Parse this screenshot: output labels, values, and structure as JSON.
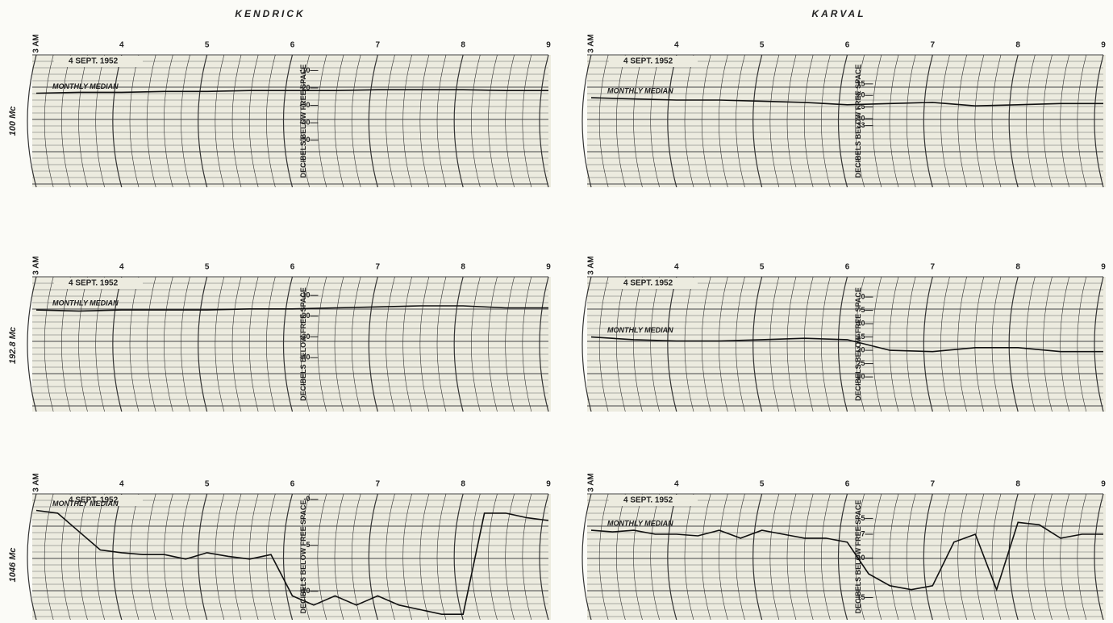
{
  "columns": [
    "KENDRICK",
    "KARVAL"
  ],
  "rows": [
    "100 Mc",
    "192.8 Mc",
    "1046 Mc"
  ],
  "panels": [
    {
      "date": "4 SEPT. 1952",
      "median_label": "MONTHLY MEDIAN",
      "axis_label": "DECIBELS BELOW FREE SPACE",
      "hours": [
        {
          "value": 3,
          "label": "3 AM"
        },
        4,
        5,
        6,
        7,
        8,
        9
      ],
      "ylim": [
        -1,
        -77
      ],
      "scale": [
        -10,
        -20,
        -30,
        -40,
        -50
      ],
      "x": [
        3,
        3.5,
        4,
        4.5,
        5,
        5.5,
        6,
        6.5,
        7,
        7.5,
        8,
        8.5,
        9
      ],
      "trace": [
        -23,
        -22.5,
        -22.5,
        -22,
        -22,
        -21.5,
        -21.5,
        -21.5,
        -21,
        -21,
        -21,
        -21.5,
        -21.5
      ]
    },
    {
      "date": "4 SEPT. 1952",
      "median_label": "MONTHLY MEDIAN",
      "axis_label": "DECIBELS BELOW FREE SPACE",
      "hours": [
        {
          "value": 3,
          "label": "3 AM"
        },
        4,
        5,
        6,
        7,
        8,
        9
      ],
      "ylim": [
        2.5,
        59.6
      ],
      "scale": [
        15,
        20,
        25,
        30,
        33
      ],
      "x": [
        3,
        3.5,
        4,
        4.5,
        5,
        5.5,
        6,
        6.5,
        7,
        7.5,
        8,
        8.5,
        9
      ],
      "trace": [
        21,
        21.5,
        22,
        22,
        22.5,
        23,
        24,
        23.5,
        23,
        24.5,
        24,
        23.5,
        23.5
      ]
    },
    {
      "date": "4 SEPT. 1952",
      "median_label": "MONTHLY MEDIAN",
      "axis_label": "DECIBELS BELOW FREE SPACE",
      "hours": [
        {
          "value": 3,
          "label": "3 AM"
        },
        4,
        5,
        6,
        7,
        8,
        9
      ],
      "ylim": [
        -1,
        -66
      ],
      "scale": [
        -10,
        -20,
        -30,
        -40
      ],
      "x": [
        3,
        3.5,
        4,
        4.5,
        5,
        5.5,
        6,
        6.5,
        7,
        7.5,
        8,
        8.5,
        9
      ],
      "trace": [
        -17,
        -17.5,
        -17,
        -17,
        -17,
        -16.5,
        -16.5,
        -16,
        -15.5,
        -15,
        -15,
        -16,
        -16
      ]
    },
    {
      "date": "4 SEPT. 1952",
      "median_label": "MONTHLY MEDIAN",
      "axis_label": "DECIBELS BELOW FREE SPACE",
      "hours": [
        {
          "value": 3,
          "label": "3 AM"
        },
        4,
        5,
        6,
        7,
        8,
        9
      ],
      "ylim": [
        -7.6,
        43
      ],
      "scale": [
        0,
        5,
        10,
        15,
        20,
        25,
        30
      ],
      "x": [
        3,
        3.5,
        4,
        4.5,
        5,
        5.5,
        6,
        6.5,
        7,
        7.5,
        8,
        8.5,
        9
      ],
      "trace": [
        15,
        16,
        16.5,
        16.5,
        16,
        15.5,
        16,
        20,
        20.5,
        19,
        19,
        20.5,
        20.5
      ]
    },
    {
      "date": "4 SEPT. 1952",
      "median_label": "MONTHLY MEDIAN",
      "axis_label": "DECIBELS BELOW FREE SPACE",
      "hours": [
        {
          "value": 3,
          "label": "3 AM"
        },
        4,
        5,
        6,
        7,
        8,
        9
      ],
      "ylim": [
        0.6,
        -13.1
      ],
      "scale": [
        {
          "value": 0,
          "label": "-0"
        },
        -5,
        -10
      ],
      "x": [
        3,
        3.25,
        3.5,
        3.75,
        4,
        4.25,
        4.5,
        4.75,
        5,
        5.25,
        5.5,
        5.75,
        6,
        6.25,
        6.5,
        6.75,
        7,
        7.25,
        7.5,
        7.75,
        8,
        8.25,
        8.5,
        8.75,
        9
      ],
      "trace": [
        -1.2,
        -1.5,
        -3.5,
        -5.5,
        -5.8,
        -6,
        -6,
        -6.5,
        -5.8,
        -6.2,
        -6.5,
        -6,
        -10.5,
        -11.5,
        -10.5,
        -11.5,
        -10.5,
        -11.5,
        -12,
        -12.5,
        -12.5,
        -1.5,
        -1.5,
        -2,
        -2.3
      ]
    },
    {
      "date": "4 SEPT. 1952",
      "median_label": "MONTHLY MEDIAN",
      "axis_label": "DECIBELS BELOW FREE SPACE",
      "hours": [
        {
          "value": 3,
          "label": "3 AM"
        },
        4,
        5,
        6,
        7,
        8,
        9
      ],
      "ylim": [
        1.9,
        17.8
      ],
      "scale": [
        5,
        7,
        10,
        15
      ],
      "x": [
        3,
        3.25,
        3.5,
        3.75,
        4,
        4.25,
        4.5,
        4.75,
        5,
        5.25,
        5.5,
        5.75,
        6,
        6.25,
        6.5,
        6.75,
        7,
        7.25,
        7.5,
        7.75,
        8,
        8.25,
        8.5,
        8.75,
        9
      ],
      "trace": [
        6.5,
        6.7,
        6.5,
        7,
        7,
        7.2,
        6.5,
        7.5,
        6.5,
        7,
        7.5,
        7.5,
        8,
        12,
        13.5,
        14,
        13.5,
        8,
        7,
        14,
        5.5,
        5.8,
        7.5,
        7,
        7
      ]
    }
  ]
}
